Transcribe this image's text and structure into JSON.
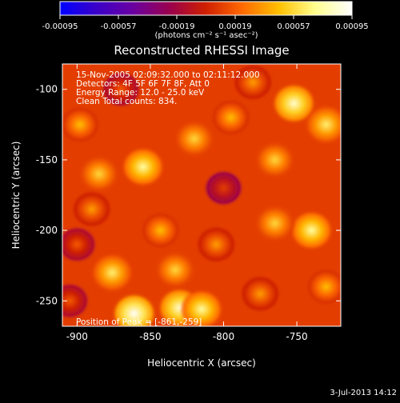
{
  "colorbar": {
    "ticks": [
      "-0.00095",
      "-0.00057",
      "-0.00019",
      "0.00019",
      "0.00057",
      "0.00095"
    ],
    "units": "(photons cm⁻² s⁻¹ asec⁻²)",
    "colors": [
      "#0000ff",
      "#3b00c8",
      "#6a00a0",
      "#9a004e",
      "#d02000",
      "#ff6a00",
      "#ffc000",
      "#ffff90",
      "#ffffff"
    ]
  },
  "footer": {
    "date": "3-Jul-2013 14:12"
  },
  "chart_data": {
    "type": "heatmap",
    "title": "Reconstructed RHESSI Image",
    "xlabel": "Heliocentric X (arcsec)",
    "ylabel": "Heliocentric Y (arcsec)",
    "xlim": [
      -910,
      -720
    ],
    "ylim": [
      -268,
      -82
    ],
    "x_ticks": [
      -900,
      -850,
      -800,
      -750
    ],
    "y_ticks": [
      -100,
      -150,
      -200,
      -250
    ],
    "annotations": [
      "15-Nov-2005 02:09:32.000 to 02:11:12.000",
      "Detectors: 4F 5F 6F 7F 8F, Att 0",
      "Energy Range: 12.0 - 25.0 keV",
      "Clean     Total counts: 834."
    ],
    "peak_label": "Position of Peak = [-861,-259]",
    "peak": [
      -861,
      -259
    ],
    "colorbar_range": [
      -0.00095,
      0.00095
    ],
    "background_level": 0.55,
    "sources": [
      {
        "x": -861,
        "y": -259,
        "value": 1.0
      },
      {
        "x": -830,
        "y": -255,
        "value": 0.95
      },
      {
        "x": -815,
        "y": -256,
        "value": 0.9
      },
      {
        "x": -876,
        "y": -230,
        "value": 0.85
      },
      {
        "x": -833,
        "y": -228,
        "value": 0.8
      },
      {
        "x": -843,
        "y": -200,
        "value": 0.75
      },
      {
        "x": -805,
        "y": -210,
        "value": 0.7
      },
      {
        "x": -740,
        "y": -200,
        "value": 0.9
      },
      {
        "x": -765,
        "y": -195,
        "value": 0.8
      },
      {
        "x": -730,
        "y": -240,
        "value": 0.75
      },
      {
        "x": -775,
        "y": -245,
        "value": 0.7
      },
      {
        "x": -855,
        "y": -155,
        "value": 0.9
      },
      {
        "x": -885,
        "y": -160,
        "value": 0.8
      },
      {
        "x": -890,
        "y": -185,
        "value": 0.7
      },
      {
        "x": -820,
        "y": -135,
        "value": 0.8
      },
      {
        "x": -795,
        "y": -120,
        "value": 0.75
      },
      {
        "x": -752,
        "y": -110,
        "value": 0.95
      },
      {
        "x": -730,
        "y": -125,
        "value": 0.85
      },
      {
        "x": -765,
        "y": -150,
        "value": 0.8
      },
      {
        "x": -898,
        "y": -125,
        "value": 0.75
      },
      {
        "x": -870,
        "y": -100,
        "value": 0.6
      },
      {
        "x": -780,
        "y": -95,
        "value": 0.7
      },
      {
        "x": -905,
        "y": -250,
        "value": 0.6
      },
      {
        "x": -800,
        "y": -170,
        "value": 0.55
      },
      {
        "x": -900,
        "y": -210,
        "value": 0.6
      }
    ]
  }
}
